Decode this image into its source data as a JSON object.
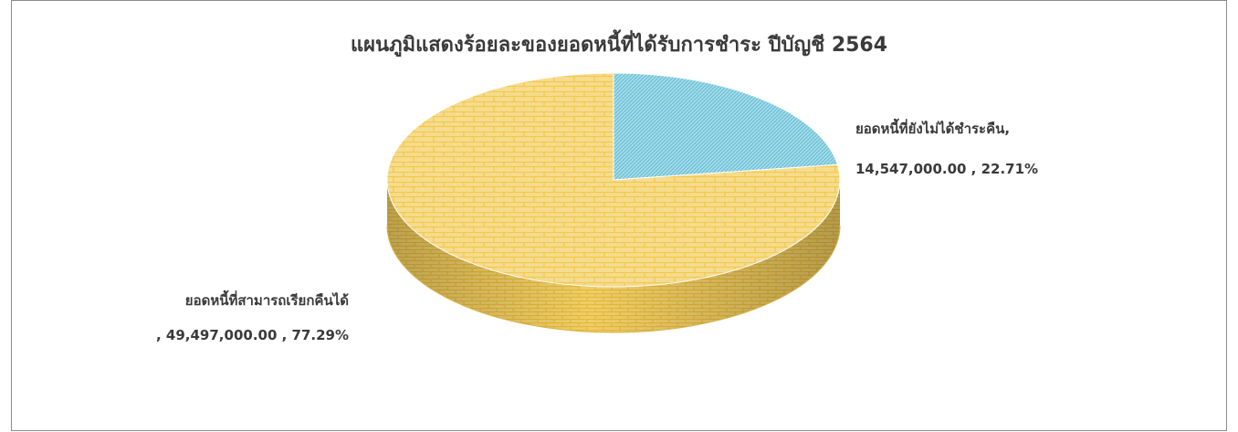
{
  "chart_data": {
    "type": "pie",
    "title": "แผนภูมิแสดงร้อยละของยอดหนี้ที่ได้รับการชำระ ปีบัญชี 2564",
    "slices": [
      {
        "label": "ยอดหนี้ที่สามารถเรียกคืนได้",
        "value": 49497000.0,
        "value_text": "49,497,000.00",
        "percent_text": "77.29%",
        "color": "#F6DC8E",
        "pattern_color": "#F2C94C"
      },
      {
        "label": "ยอดหนี้ที่ยังไม่ได้ชำระคืน",
        "value": 14547000.0,
        "value_text": "14,547,000.00",
        "percent_text": "22.71%",
        "color": "#A9DDEA",
        "pattern_color": "#58B7D0"
      }
    ],
    "style": "3d-pie",
    "legend": "none"
  }
}
